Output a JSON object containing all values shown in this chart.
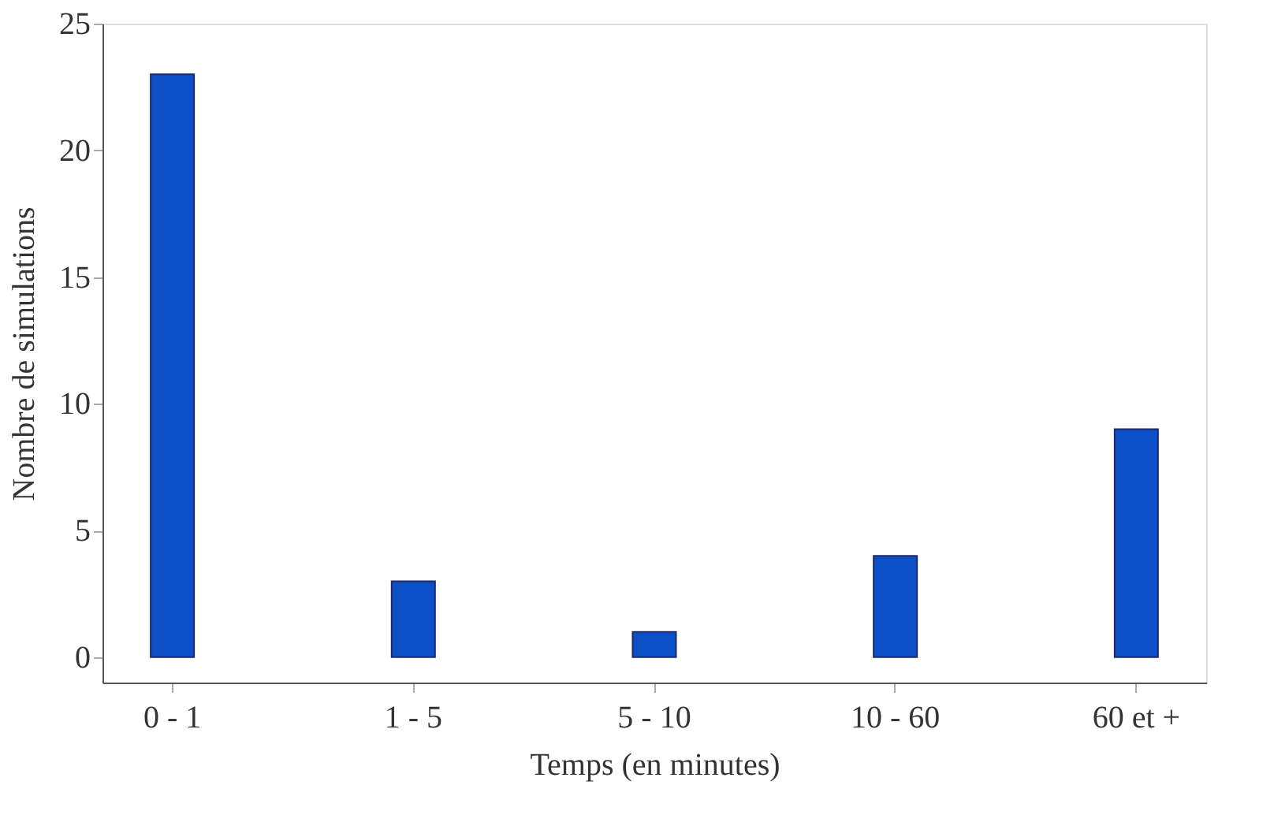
{
  "chart_data": {
    "type": "bar",
    "xlabel": "Temps (en minutes)",
    "ylabel": "Nombre de simulations",
    "categories": [
      "0 - 1",
      "1 - 5",
      "5 - 10",
      "10 - 60",
      "60 et +"
    ],
    "values": [
      23,
      3,
      1,
      4,
      9
    ],
    "color": "#0c4fc6",
    "ylim": [
      -1,
      25
    ],
    "yticks": [
      0,
      5,
      10,
      15,
      20,
      25
    ],
    "grid": false
  }
}
